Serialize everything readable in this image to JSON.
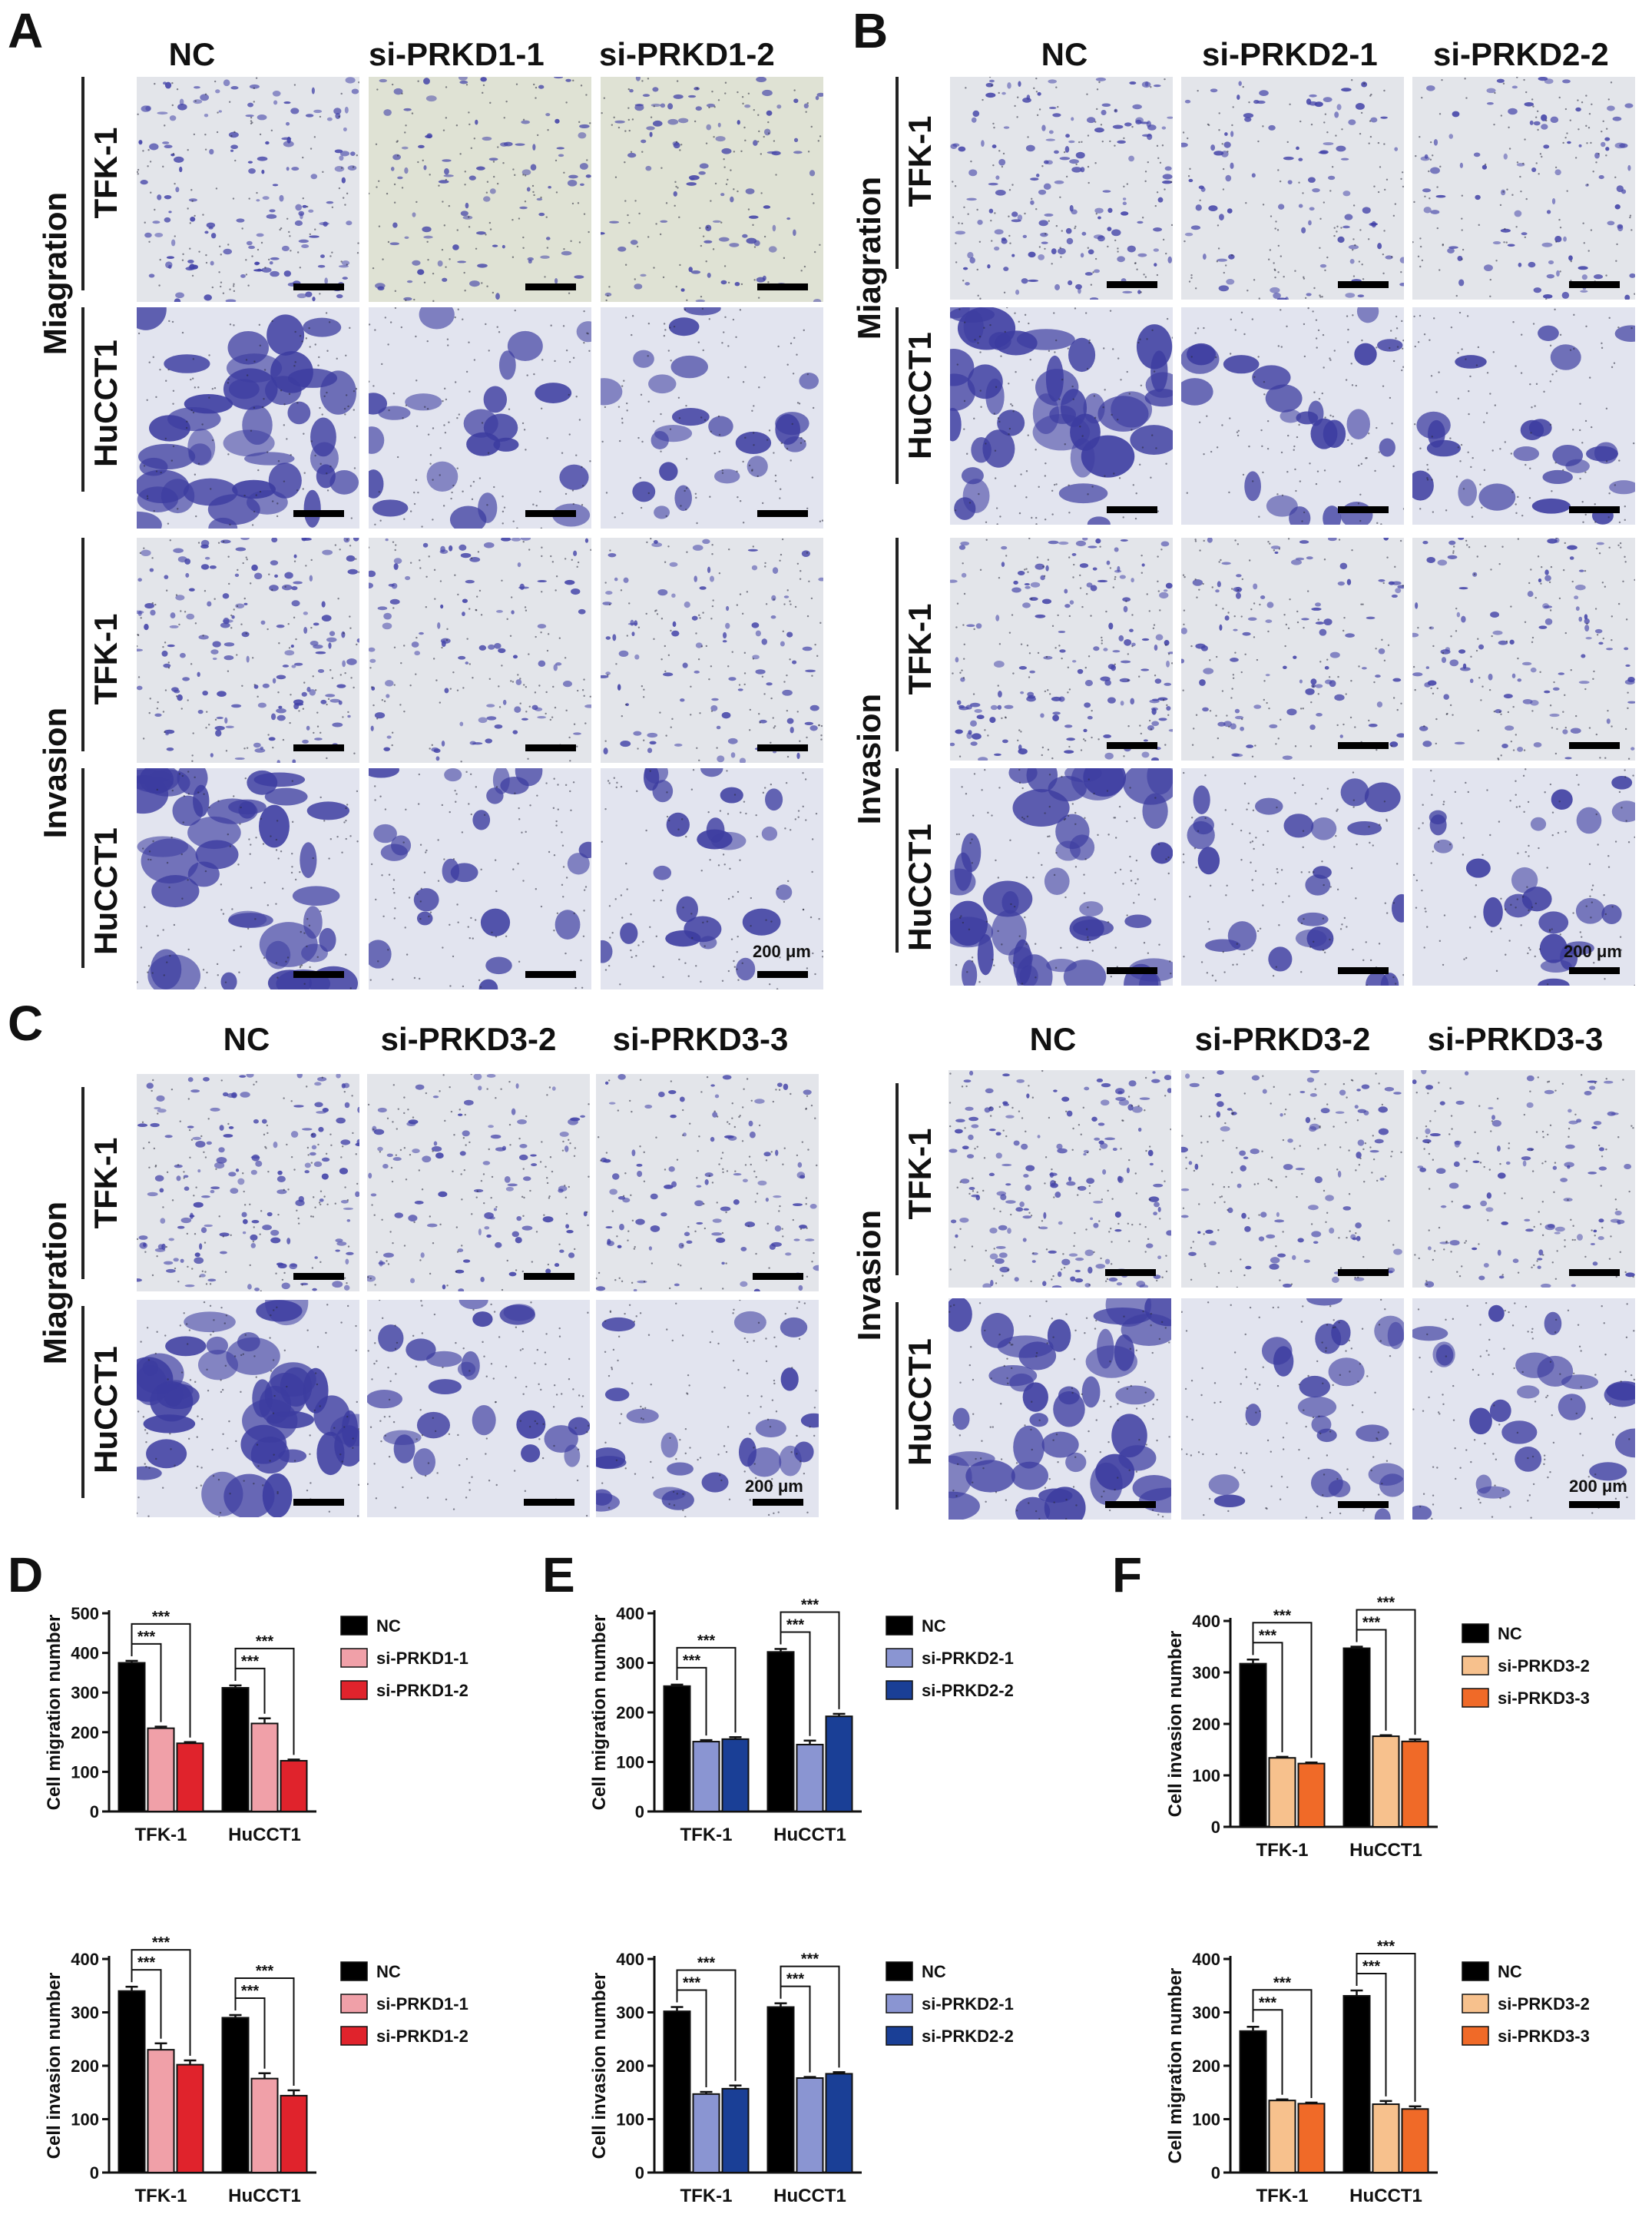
{
  "colors": {
    "nc": "#000000",
    "si_prkd1_1": "#f0a0a8",
    "si_prkd1_2": "#e0232c",
    "si_prkd2_1": "#8a95d2",
    "si_prkd2_2": "#1a3f96",
    "si_prkd3_2": "#f7c18d",
    "si_prkd3_3": "#f06a28",
    "stain_dark": "#3c3ca0",
    "membrane_bg": "#e4e6ee"
  },
  "panels": {
    "A": {
      "letter": "A",
      "columns": [
        "NC",
        "si-PRKD1-1",
        "si-PRKD1-2"
      ],
      "group_labels": [
        "Miagration",
        "Invasion"
      ],
      "row_labels": [
        "TFK-1",
        "HuCCT1",
        "TFK-1",
        "HuCCT1"
      ],
      "scale_label": "200 μm"
    },
    "B": {
      "letter": "B",
      "columns": [
        "NC",
        "si-PRKD2-1",
        "si-PRKD2-2"
      ],
      "group_labels": [
        "Miagration",
        "Invasion"
      ],
      "row_labels": [
        "TFK-1",
        "HuCCT1",
        "TFK-1",
        "HuCCT1"
      ],
      "scale_label": "200 μm"
    },
    "C": {
      "letter": "C",
      "left": {
        "columns": [
          "NC",
          "si-PRKD3-2",
          "si-PRKD3-3"
        ],
        "group_label": "Miagration",
        "row_labels": [
          "TFK-1",
          "HuCCT1"
        ],
        "scale_label": "200 μm"
      },
      "right": {
        "columns": [
          "NC",
          "si-PRKD3-2",
          "si-PRKD3-3"
        ],
        "group_label": "Invasion",
        "row_labels": [
          "TFK-1",
          "HuCCT1"
        ],
        "scale_label": "200 μm"
      }
    },
    "D": {
      "letter": "D"
    },
    "E": {
      "letter": "E"
    },
    "F": {
      "letter": "F"
    }
  },
  "chart_data": [
    {
      "id": "D-top",
      "type": "bar",
      "categories": [
        "TFK-1",
        "HuCCT1"
      ],
      "ylabel": "Cell migration number",
      "ylim": [
        0,
        500
      ],
      "yticks": [
        0,
        100,
        200,
        300,
        400,
        500
      ],
      "significance": "***",
      "series": [
        {
          "name": "NC",
          "color_key": "nc",
          "values": [
            375,
            312
          ],
          "errors": [
            5,
            6
          ]
        },
        {
          "name": "si-PRKD1-1",
          "color_key": "si_prkd1_1",
          "values": [
            210,
            222
          ],
          "errors": [
            4,
            13
          ]
        },
        {
          "name": "si-PRKD1-2",
          "color_key": "si_prkd1_2",
          "values": [
            172,
            128
          ],
          "errors": [
            3,
            3
          ]
        }
      ]
    },
    {
      "id": "D-bottom",
      "type": "bar",
      "categories": [
        "TFK-1",
        "HuCCT1"
      ],
      "ylabel": "Cell invasion number",
      "ylim": [
        0,
        400
      ],
      "yticks": [
        0,
        100,
        200,
        300,
        400
      ],
      "significance": "***",
      "series": [
        {
          "name": "NC",
          "color_key": "nc",
          "values": [
            340,
            290
          ],
          "errors": [
            8,
            5
          ]
        },
        {
          "name": "si-PRKD1-1",
          "color_key": "si_prkd1_1",
          "values": [
            230,
            176
          ],
          "errors": [
            12,
            10
          ]
        },
        {
          "name": "si-PRKD1-2",
          "color_key": "si_prkd1_2",
          "values": [
            202,
            144
          ],
          "errors": [
            8,
            10
          ]
        }
      ]
    },
    {
      "id": "E-top",
      "type": "bar",
      "categories": [
        "TFK-1",
        "HuCCT1"
      ],
      "ylabel": "Cell migration number",
      "ylim": [
        0,
        400
      ],
      "yticks": [
        0,
        100,
        200,
        300,
        400
      ],
      "significance": "***",
      "series": [
        {
          "name": "NC",
          "color_key": "nc",
          "values": [
            253,
            322
          ],
          "errors": [
            3,
            6
          ]
        },
        {
          "name": "si-PRKD2-1",
          "color_key": "si_prkd2_1",
          "values": [
            141,
            135
          ],
          "errors": [
            3,
            8
          ]
        },
        {
          "name": "si-PRKD2-2",
          "color_key": "si_prkd2_2",
          "values": [
            146,
            192
          ],
          "errors": [
            4,
            5
          ]
        }
      ]
    },
    {
      "id": "E-bottom",
      "type": "bar",
      "categories": [
        "TFK-1",
        "HuCCT1"
      ],
      "ylabel": "Cell invasion number",
      "ylim": [
        0,
        400
      ],
      "yticks": [
        0,
        100,
        200,
        300,
        400
      ],
      "significance": "***",
      "series": [
        {
          "name": "NC",
          "color_key": "nc",
          "values": [
            302,
            310
          ],
          "errors": [
            8,
            7
          ]
        },
        {
          "name": "si-PRKD2-1",
          "color_key": "si_prkd2_1",
          "values": [
            147,
            177
          ],
          "errors": [
            4,
            2
          ]
        },
        {
          "name": "si-PRKD2-2",
          "color_key": "si_prkd2_2",
          "values": [
            157,
            185
          ],
          "errors": [
            6,
            3
          ]
        }
      ]
    },
    {
      "id": "F-top",
      "type": "bar",
      "categories": [
        "TFK-1",
        "HuCCT1"
      ],
      "ylabel": "Cell invasion number",
      "ylim": [
        0,
        400
      ],
      "yticks": [
        0,
        100,
        200,
        300,
        400
      ],
      "significance": "***",
      "series": [
        {
          "name": "NC",
          "color_key": "nc",
          "values": [
            317,
            347
          ],
          "errors": [
            8,
            3
          ]
        },
        {
          "name": "si-PRKD3-2",
          "color_key": "si_prkd3_2",
          "values": [
            134,
            176
          ],
          "errors": [
            2,
            2
          ]
        },
        {
          "name": "si-PRKD3-3",
          "color_key": "si_prkd3_3",
          "values": [
            123,
            166
          ],
          "errors": [
            2,
            4
          ]
        }
      ]
    },
    {
      "id": "F-bottom",
      "type": "bar",
      "categories": [
        "TFK-1",
        "HuCCT1"
      ],
      "ylabel": "Cell migration number",
      "ylim": [
        0,
        400
      ],
      "yticks": [
        0,
        100,
        200,
        300,
        400
      ],
      "significance": "***",
      "series": [
        {
          "name": "NC",
          "color_key": "nc",
          "values": [
            265,
            331
          ],
          "errors": [
            8,
            10
          ]
        },
        {
          "name": "si-PRKD3-2",
          "color_key": "si_prkd3_2",
          "values": [
            135,
            128
          ],
          "errors": [
            2,
            6
          ]
        },
        {
          "name": "si-PRKD3-3",
          "color_key": "si_prkd3_3",
          "values": [
            129,
            119
          ],
          "errors": [
            2,
            5
          ]
        }
      ]
    }
  ]
}
